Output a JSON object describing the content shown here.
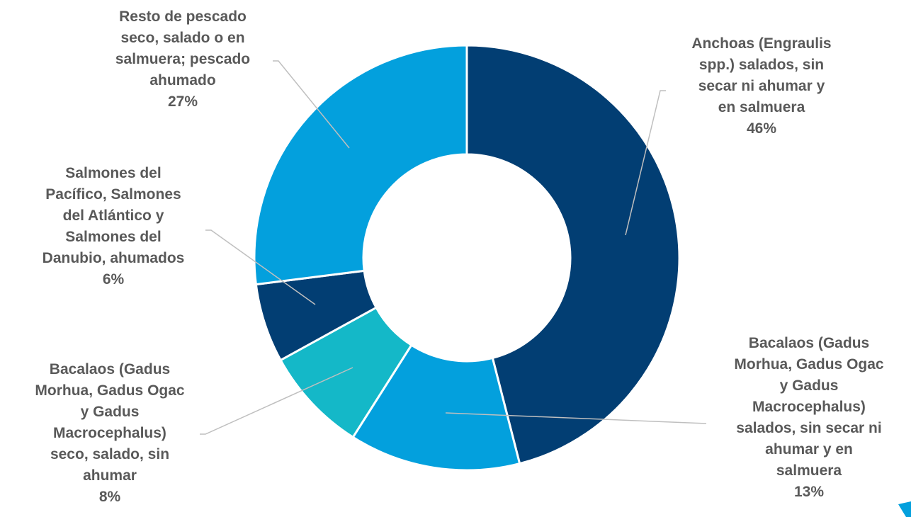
{
  "chart_data": {
    "type": "pie",
    "donut": true,
    "title": "",
    "slices": [
      {
        "label_lines": [
          "Anchoas (Engraulis",
          "spp.) salados, sin",
          "secar ni ahumar y",
          "en salmuera"
        ],
        "percent_label": "46%",
        "value": 46,
        "color": "#023e73"
      },
      {
        "label_lines": [
          "Bacalaos (Gadus",
          "Morhua, Gadus Ogac",
          "y Gadus",
          "Macrocephalus)",
          "salados, sin secar ni",
          "ahumar y en",
          "salmuera"
        ],
        "percent_label": "13%",
        "value": 13,
        "color": "#03a0dd"
      },
      {
        "label_lines": [
          "Bacalaos (Gadus",
          "Morhua, Gadus Ogac",
          "y Gadus",
          "Macrocephalus)",
          "seco, salado, sin",
          "ahumar"
        ],
        "percent_label": "8%",
        "value": 8,
        "color": "#14b8c8"
      },
      {
        "label_lines": [
          "Salmones del",
          "Pacífico, Salmones",
          "del Atlántico y",
          "Salmones del",
          "Danubio, ahumados"
        ],
        "percent_label": "6%",
        "value": 6,
        "color": "#023e73"
      },
      {
        "label_lines": [
          "Resto de pescado",
          "seco, salado o en",
          "salmuera; pescado",
          "ahumado"
        ],
        "percent_label": "27%",
        "value": 27,
        "color": "#03a0dd"
      }
    ]
  }
}
